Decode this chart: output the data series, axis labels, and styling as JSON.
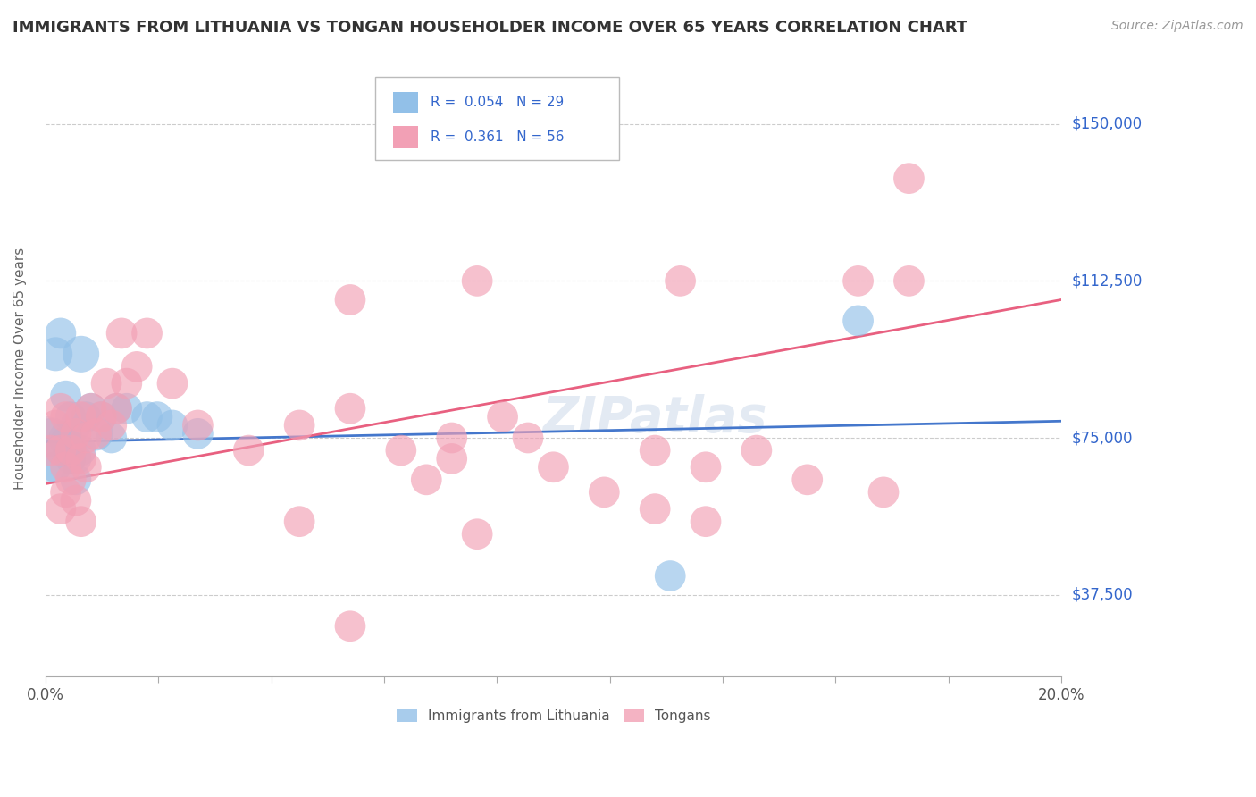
{
  "title": "IMMIGRANTS FROM LITHUANIA VS TONGAN HOUSEHOLDER INCOME OVER 65 YEARS CORRELATION CHART",
  "source": "Source: ZipAtlas.com",
  "ylabel": "Householder Income Over 65 years",
  "xlim": [
    0.0,
    0.2
  ],
  "ylim": [
    18000,
    165000
  ],
  "yticks": [
    37500,
    75000,
    112500,
    150000
  ],
  "ytick_labels": [
    "$37,500",
    "$75,000",
    "$112,500",
    "$150,000"
  ],
  "xticks": [
    0.0,
    0.022222,
    0.044444,
    0.066667,
    0.088889,
    0.111111,
    0.133333,
    0.155556,
    0.177778,
    0.2
  ],
  "legend_blue_R": "0.054",
  "legend_blue_N": "29",
  "legend_pink_R": "0.361",
  "legend_pink_N": "56",
  "blue_color": "#92C0E8",
  "pink_color": "#F2A0B5",
  "blue_line_color": "#4477CC",
  "pink_line_color": "#E86080",
  "watermark": "ZIPatlas",
  "blue_line_x": [
    0.0,
    0.2
  ],
  "blue_line_y": [
    74000,
    79000
  ],
  "pink_line_x": [
    0.0,
    0.2
  ],
  "pink_line_y": [
    64000,
    108000
  ],
  "blue_scatter_x": [
    0.001,
    0.002,
    0.003,
    0.004,
    0.004,
    0.005,
    0.005,
    0.006,
    0.006,
    0.007,
    0.008,
    0.009,
    0.01,
    0.011,
    0.013,
    0.014,
    0.016,
    0.02,
    0.022,
    0.025,
    0.03,
    0.002,
    0.003,
    0.004,
    0.005,
    0.006,
    0.007,
    0.123,
    0.16
  ],
  "blue_scatter_y": [
    75000,
    95000,
    100000,
    75000,
    85000,
    80000,
    73000,
    70000,
    78000,
    95000,
    80000,
    82000,
    76000,
    80000,
    75000,
    82000,
    82000,
    80000,
    80000,
    78000,
    76000,
    68000,
    72000,
    74000,
    70000,
    65000,
    72000,
    42000,
    103000
  ],
  "blue_scatter_size": [
    40,
    30,
    25,
    30,
    25,
    25,
    25,
    25,
    25,
    35,
    25,
    25,
    30,
    25,
    25,
    25,
    25,
    25,
    25,
    25,
    25,
    25,
    25,
    25,
    25,
    25,
    25,
    25,
    25
  ],
  "blue_large_x": [
    0.0
  ],
  "blue_large_y": [
    72000
  ],
  "blue_large_size": [
    3000
  ],
  "pink_scatter_x": [
    0.001,
    0.002,
    0.003,
    0.003,
    0.004,
    0.004,
    0.005,
    0.006,
    0.007,
    0.007,
    0.008,
    0.009,
    0.01,
    0.011,
    0.012,
    0.013,
    0.014,
    0.015,
    0.016,
    0.018,
    0.02,
    0.025,
    0.03,
    0.04,
    0.05,
    0.06,
    0.07,
    0.075,
    0.08,
    0.085,
    0.09,
    0.095,
    0.1,
    0.11,
    0.12,
    0.125,
    0.13,
    0.14,
    0.15,
    0.16,
    0.165,
    0.17,
    0.003,
    0.004,
    0.005,
    0.006,
    0.007,
    0.008,
    0.05,
    0.06,
    0.12,
    0.13,
    0.06,
    0.08,
    0.085,
    0.17
  ],
  "pink_scatter_y": [
    72000,
    78000,
    82000,
    72000,
    80000,
    68000,
    72000,
    76000,
    80000,
    70000,
    75000,
    82000,
    76000,
    80000,
    88000,
    78000,
    82000,
    100000,
    88000,
    92000,
    100000,
    88000,
    78000,
    72000,
    78000,
    82000,
    72000,
    65000,
    70000,
    112500,
    80000,
    75000,
    68000,
    62000,
    72000,
    112500,
    68000,
    72000,
    65000,
    112500,
    62000,
    112500,
    58000,
    62000,
    65000,
    60000,
    55000,
    68000,
    55000,
    30000,
    58000,
    55000,
    108000,
    75000,
    52000,
    137000
  ],
  "pink_scatter_size": [
    25,
    25,
    25,
    25,
    25,
    25,
    25,
    25,
    25,
    25,
    25,
    25,
    25,
    25,
    25,
    25,
    25,
    25,
    25,
    25,
    25,
    25,
    25,
    25,
    25,
    25,
    25,
    25,
    25,
    25,
    25,
    25,
    25,
    25,
    25,
    25,
    25,
    25,
    25,
    25,
    25,
    25,
    25,
    25,
    25,
    25,
    25,
    25,
    25,
    25,
    25,
    25,
    25,
    25,
    25,
    25
  ]
}
